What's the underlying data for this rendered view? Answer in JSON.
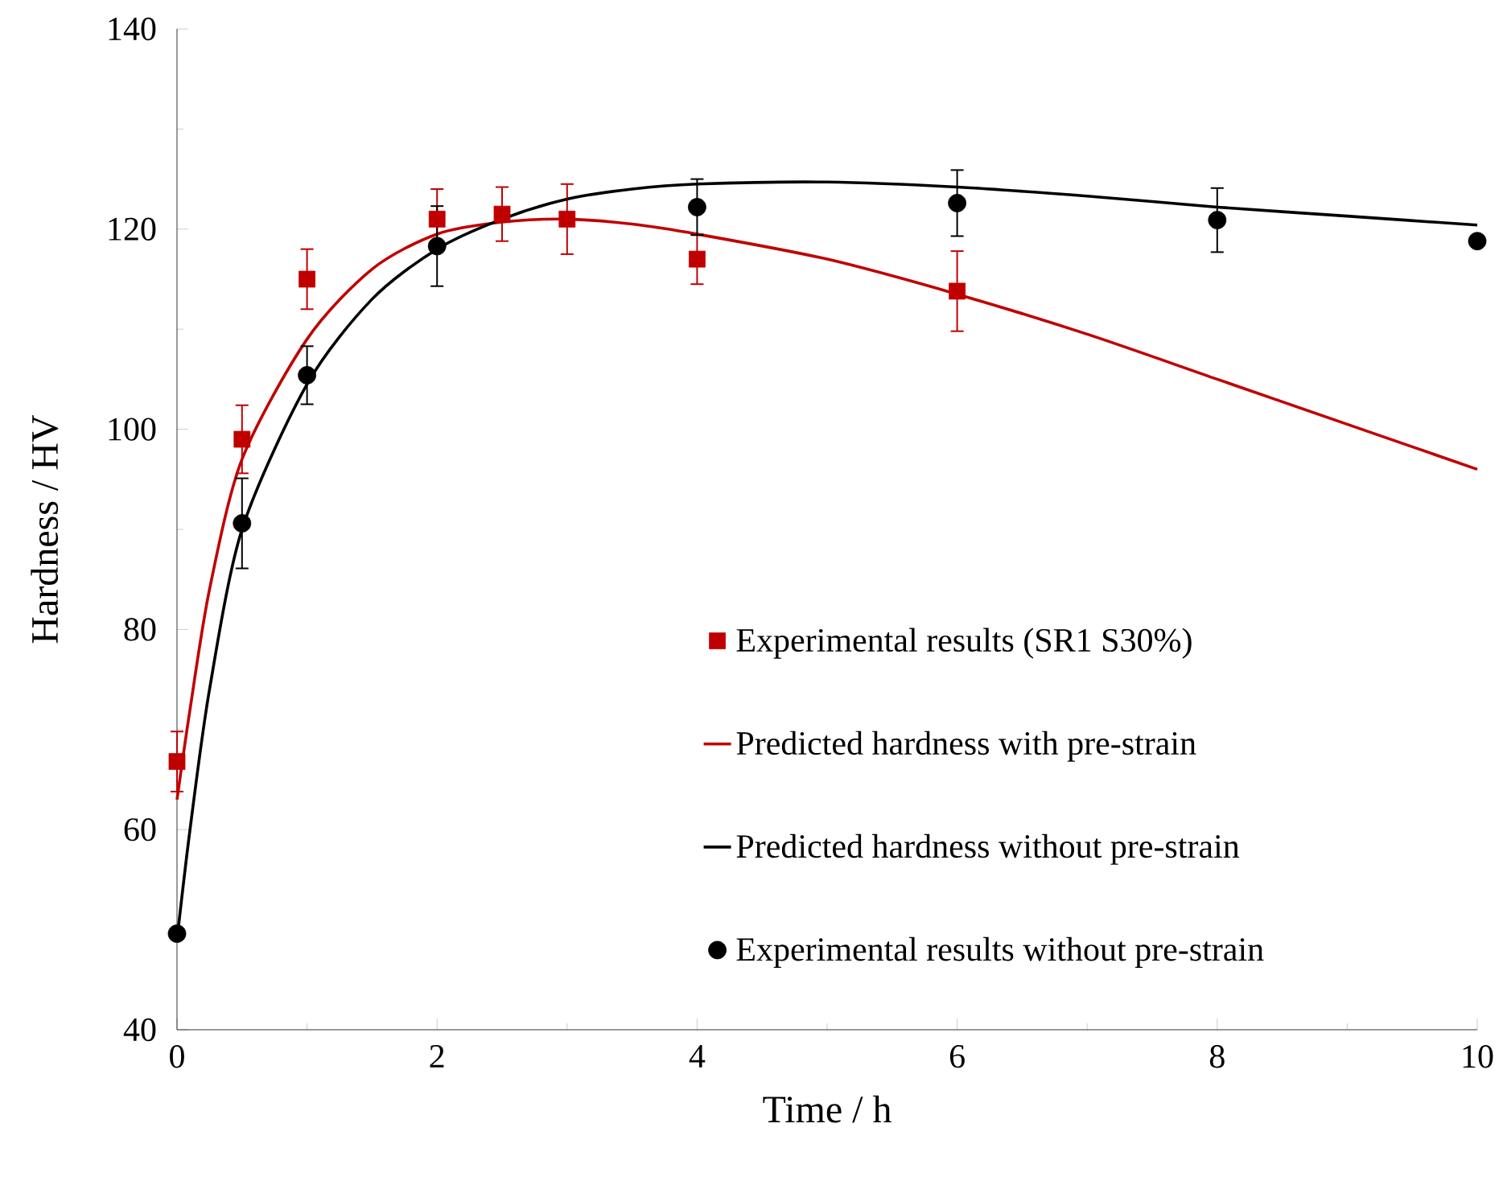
{
  "chart_data": {
    "type": "line",
    "xlabel": "Time / h",
    "ylabel": "Hardness / HV",
    "xlim": [
      0,
      10
    ],
    "ylim": [
      40,
      140
    ],
    "xticks": [
      0,
      2,
      4,
      6,
      8,
      10
    ],
    "yticks": [
      40,
      60,
      80,
      100,
      120,
      140
    ],
    "legend": "bottom right",
    "grid": false,
    "series": [
      {
        "name": "Experimental results (SR1 S30%)",
        "type": "scatter",
        "marker": "square",
        "color": "#c00000",
        "x": [
          0,
          0.5,
          1,
          2,
          2.5,
          3,
          4,
          6
        ],
        "values": [
          66.8,
          99,
          115,
          121,
          121.5,
          121,
          117,
          113.8
        ],
        "errors": [
          3,
          3.4,
          3,
          3,
          2.7,
          3.5,
          2.5,
          4
        ]
      },
      {
        "name": "Predicted hardness with pre-strain",
        "marker": "none",
        "color": "#c00000",
        "x": [
          0,
          0.1,
          0.25,
          0.5,
          1,
          1.5,
          2,
          2.5,
          3,
          3.5,
          4,
          5,
          6,
          7,
          8,
          9,
          10
        ],
        "values": [
          63,
          72,
          84,
          97,
          109,
          116,
          119.5,
          120.7,
          121,
          120.5,
          119.5,
          117,
          113.5,
          109.5,
          105,
          100.5,
          96
        ]
      },
      {
        "name": "Predicted hardness without pre-strain",
        "marker": "none",
        "color": "#000000",
        "x": [
          0,
          0.1,
          0.25,
          0.5,
          1,
          1.5,
          2,
          2.5,
          3,
          3.5,
          4,
          5,
          6,
          7,
          8,
          9,
          10
        ],
        "values": [
          49,
          60,
          74,
          90,
          104.5,
          113,
          118,
          121,
          123,
          124,
          124.5,
          124.7,
          124.2,
          123.3,
          122.2,
          121.3,
          120.4
        ]
      },
      {
        "name": "Experimental results without pre-strain",
        "type": "scatter",
        "marker": "circle",
        "color": "#000000",
        "x": [
          0,
          0.5,
          1,
          2,
          4,
          6,
          8,
          10
        ],
        "values": [
          49.6,
          90.6,
          105.4,
          118.3,
          122.2,
          122.6,
          120.9,
          118.8
        ],
        "errors": [
          null,
          4.5,
          2.9,
          4,
          2.8,
          3.3,
          3.2,
          null
        ]
      }
    ]
  }
}
